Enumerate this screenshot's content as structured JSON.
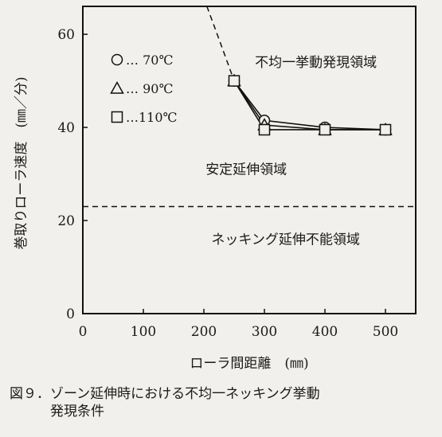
{
  "chart_data": {
    "type": "line",
    "xlabel": "ローラ間距離　(㎜)",
    "ylabel": "巻取りローラ速度　(㎜／分)",
    "xlim": [
      0,
      550
    ],
    "ylim": [
      0,
      66
    ],
    "x_ticks": [
      "0",
      "100",
      "200",
      "300",
      "400",
      "500"
    ],
    "y_ticks": [
      "0",
      "20",
      "40",
      "60"
    ],
    "legend": [
      {
        "name": "○… 70℃",
        "marker": "circle"
      },
      {
        "name": "△… 90℃",
        "marker": "triangle"
      },
      {
        "name": "□…110℃",
        "marker": "square"
      }
    ],
    "series": [
      {
        "marker": "circle",
        "x": [
          250,
          300,
          400,
          500
        ],
        "y": [
          50,
          41.5,
          40,
          39.5
        ]
      },
      {
        "marker": "triangle",
        "x": [
          250,
          300,
          400,
          500
        ],
        "y": [
          50,
          40.5,
          39.5,
          39.5
        ]
      },
      {
        "marker": "square",
        "x": [
          250,
          300,
          400,
          500
        ],
        "y": [
          50,
          39.5,
          39.5,
          39.5
        ]
      }
    ],
    "boundary_curve": {
      "x": [
        205,
        225,
        250
      ],
      "y": [
        66,
        59,
        50
      ],
      "style": "dashed"
    },
    "necking_limit_line": {
      "y": 23,
      "style": "dashed"
    },
    "regions": [
      {
        "text": "不均一挙動発現領域",
        "x": 385,
        "y": 53
      },
      {
        "text": "安定延伸領域",
        "x": 270,
        "y": 30
      },
      {
        "text": "ネッキング延伸不能領域",
        "x": 335,
        "y": 15
      }
    ],
    "caption": [
      "図９．ゾーン延伸時における不均一ネッキング挙動",
      "　　　発現条件"
    ]
  }
}
